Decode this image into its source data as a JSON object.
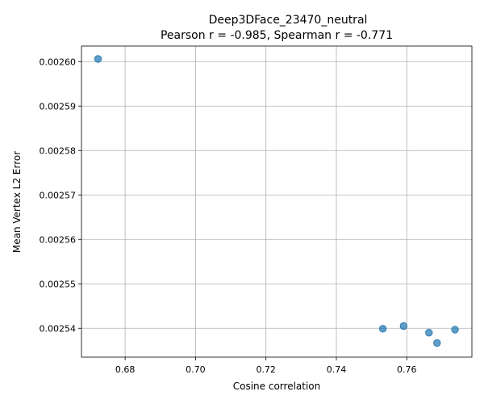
{
  "chart_data": {
    "type": "scatter",
    "title": "Deep3DFace_23470_neutral",
    "subtitle": "Pearson r = -0.985, Spearman r = -0.771",
    "xlabel": "Cosine correlation",
    "ylabel": "Mean Vertex L2 Error",
    "xlim": [
      0.6676,
      0.7785
    ],
    "ylim": [
      0.0025335,
      0.0026035
    ],
    "x_ticks": [
      0.68,
      0.7,
      0.72,
      0.74,
      0.76
    ],
    "x_tick_labels": [
      "0.68",
      "0.70",
      "0.72",
      "0.74",
      "0.76"
    ],
    "y_ticks": [
      0.00254,
      0.00255,
      0.00256,
      0.00257,
      0.00258,
      0.00259,
      0.0026
    ],
    "y_tick_labels": [
      "0.00254",
      "0.00255",
      "0.00256",
      "0.00257",
      "0.00258",
      "0.00259",
      "0.00260"
    ],
    "grid": true,
    "marker_color": "#1f77b4",
    "points": [
      {
        "x": 0.6723,
        "y": 0.0026006
      },
      {
        "x": 0.7532,
        "y": 0.0025399
      },
      {
        "x": 0.7591,
        "y": 0.0025405
      },
      {
        "x": 0.7663,
        "y": 0.002539
      },
      {
        "x": 0.7686,
        "y": 0.0025367
      },
      {
        "x": 0.7737,
        "y": 0.0025397
      }
    ]
  }
}
